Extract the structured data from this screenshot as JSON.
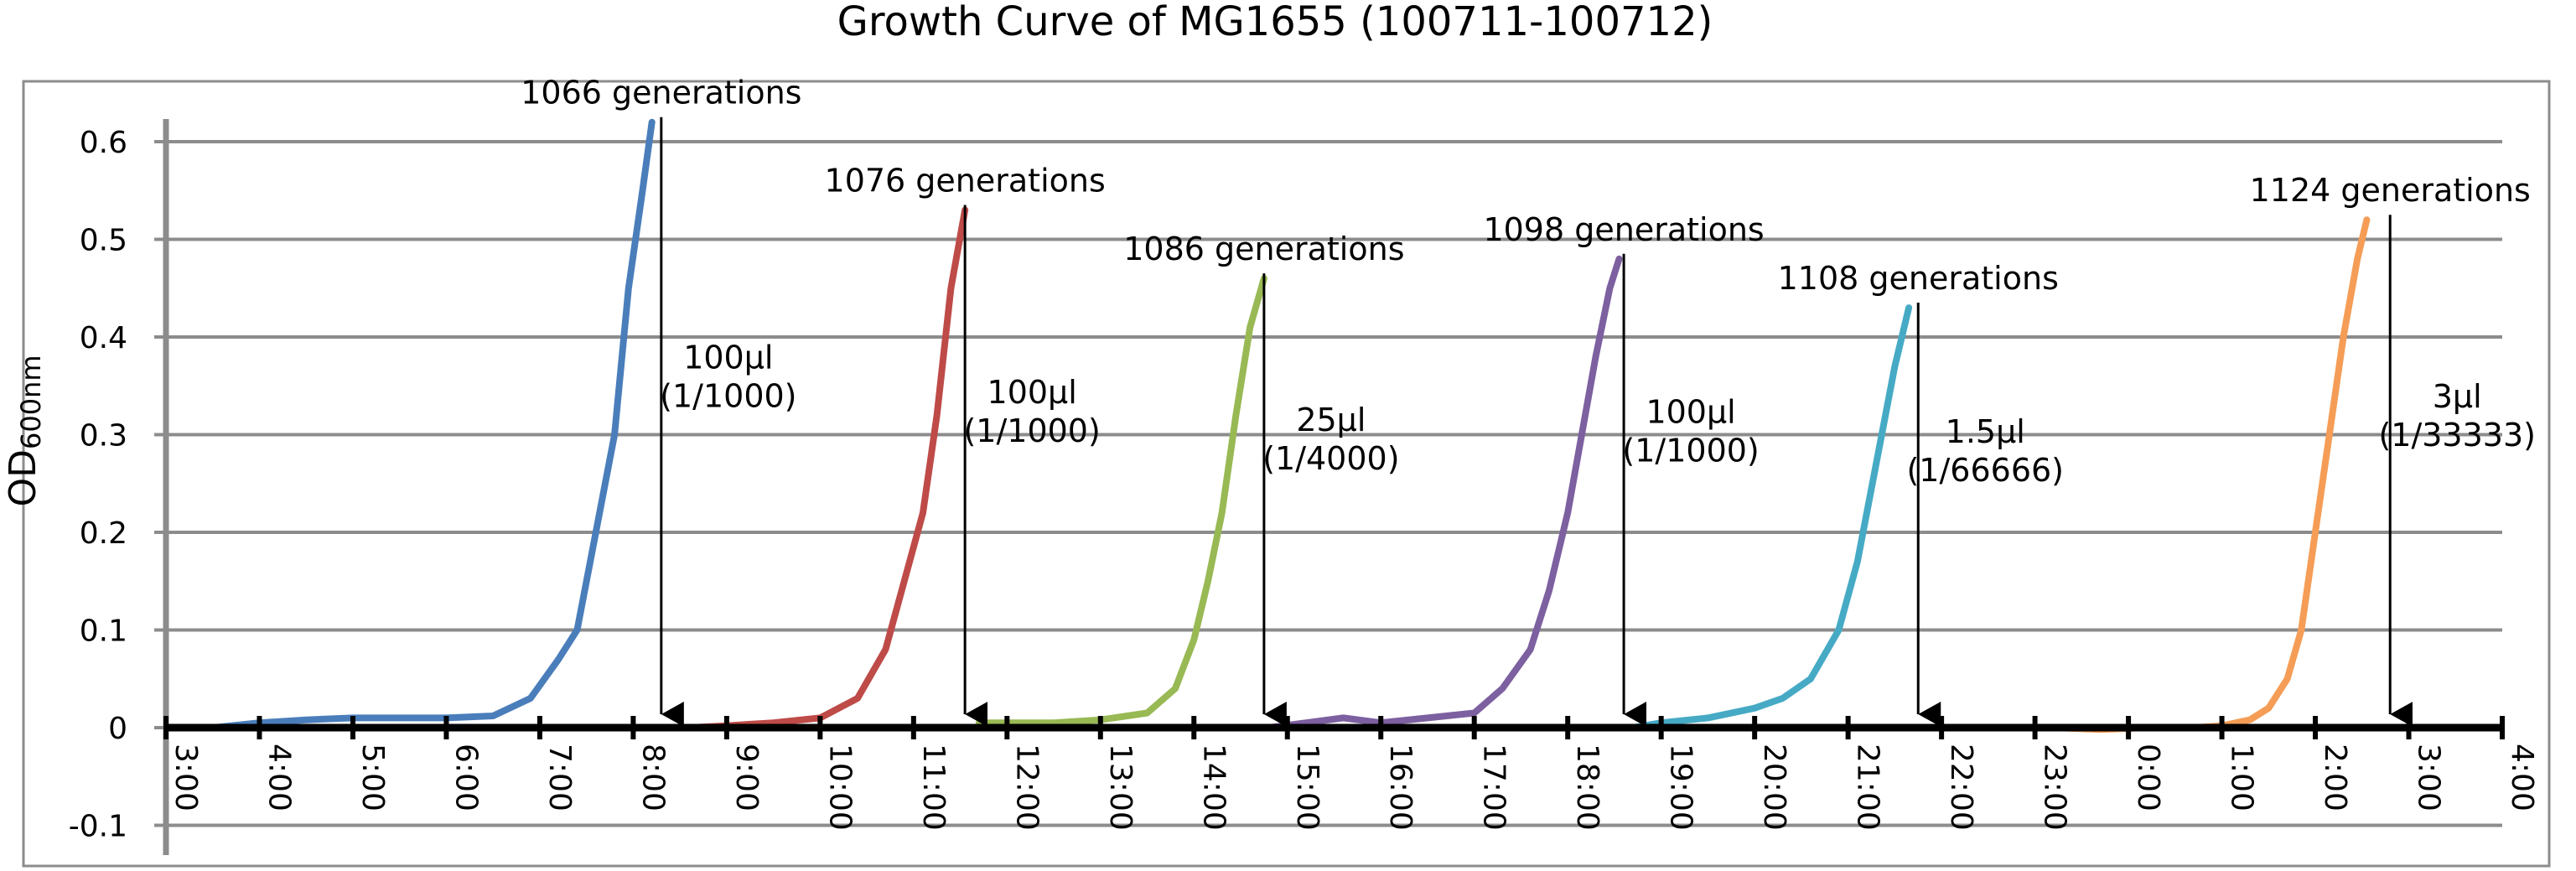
{
  "chart_data": {
    "type": "line",
    "title": "Growth Curve of MG1655 (100711-100712)",
    "ylabel_main": "OD",
    "ylabel_sub": "600nm",
    "xlabel": "",
    "ylim": [
      -0.1,
      0.62
    ],
    "yticks": [
      "-0.1",
      "0",
      "0.1",
      "0.2",
      "0.3",
      "0.4",
      "0.5",
      "0.6"
    ],
    "ytick_values": [
      -0.1,
      0,
      0.1,
      0.2,
      0.3,
      0.4,
      0.5,
      0.6
    ],
    "xlim_hours": [
      3,
      28
    ],
    "xticks": [
      "3:00",
      "4:00",
      "5:00",
      "6:00",
      "7:00",
      "8:00",
      "9:00",
      "10:00",
      "11:00",
      "12:00",
      "13:00",
      "14:00",
      "15:00",
      "16:00",
      "17:00",
      "18:00",
      "19:00",
      "20:00",
      "21:00",
      "22:00",
      "23:00",
      "0:00",
      "1:00",
      "2:00",
      "3:00",
      "4:00"
    ],
    "grid": true,
    "series": [
      {
        "color": "#4a7ebb",
        "x": [
          3.5,
          4.0,
          4.5,
          5.0,
          5.5,
          6.0,
          6.5,
          6.9,
          7.2,
          7.4,
          7.6,
          7.8,
          7.95,
          8.1,
          8.2
        ],
        "y": [
          0.0,
          0.005,
          0.008,
          0.01,
          0.01,
          0.01,
          0.012,
          0.03,
          0.07,
          0.1,
          0.2,
          0.3,
          0.45,
          0.55,
          0.62
        ]
      },
      {
        "color": "#be4b48",
        "x": [
          8.6,
          9.0,
          9.5,
          10.0,
          10.4,
          10.7,
          10.9,
          11.1,
          11.25,
          11.4,
          11.55
        ],
        "y": [
          0.0,
          0.002,
          0.005,
          0.01,
          0.03,
          0.08,
          0.15,
          0.22,
          0.32,
          0.45,
          0.53
        ]
      },
      {
        "color": "#98b954",
        "x": [
          11.7,
          12.0,
          12.5,
          13.0,
          13.5,
          13.8,
          14.0,
          14.15,
          14.3,
          14.45,
          14.6,
          14.75
        ],
        "y": [
          0.005,
          0.005,
          0.005,
          0.008,
          0.015,
          0.04,
          0.09,
          0.15,
          0.22,
          0.32,
          0.41,
          0.46
        ]
      },
      {
        "color": "#7d60a0",
        "x": [
          14.8,
          15.2,
          15.6,
          16.0,
          16.5,
          17.0,
          17.3,
          17.6,
          17.8,
          18.0,
          18.15,
          18.3,
          18.45,
          18.55
        ],
        "y": [
          0.0,
          0.005,
          0.01,
          0.005,
          0.01,
          0.015,
          0.04,
          0.08,
          0.14,
          0.22,
          0.3,
          0.38,
          0.45,
          0.48
        ]
      },
      {
        "color": "#46aac5",
        "x": [
          18.7,
          19.0,
          19.5,
          20.0,
          20.3,
          20.6,
          20.9,
          21.1,
          21.3,
          21.5,
          21.65
        ],
        "y": [
          0.0,
          0.005,
          0.01,
          0.02,
          0.03,
          0.05,
          0.1,
          0.17,
          0.27,
          0.37,
          0.43
        ]
      },
      {
        "color": "#f59d56",
        "x": [
          21.8,
          22.2,
          22.7,
          23.2,
          23.7,
          24.2,
          24.7,
          25.0,
          25.3,
          25.5,
          25.7,
          25.85,
          26.0,
          26.15,
          26.3,
          26.45,
          26.55
        ],
        "y": [
          0.0,
          0.0,
          0.0,
          0.0,
          -0.002,
          0.0,
          0.0,
          0.002,
          0.008,
          0.02,
          0.05,
          0.1,
          0.2,
          0.3,
          0.4,
          0.48,
          0.52
        ]
      }
    ],
    "annotations": [
      {
        "generation_label": "1066 generations",
        "dilution_volume": "100μl",
        "dilution_ratio": "(1/1000)",
        "x": 8.3,
        "top_y": 0.62
      },
      {
        "generation_label": "1076 generations",
        "dilution_volume": "100μl",
        "dilution_ratio": "(1/1000)",
        "x": 11.55,
        "top_y": 0.53
      },
      {
        "generation_label": "1086 generations",
        "dilution_volume": "25μl",
        "dilution_ratio": "(1/4000)",
        "x": 14.75,
        "top_y": 0.46
      },
      {
        "generation_label": "1098 generations",
        "dilution_volume": "100μl",
        "dilution_ratio": "(1/1000)",
        "x": 18.6,
        "top_y": 0.48
      },
      {
        "generation_label": "1108 generations",
        "dilution_volume": "1.5μl",
        "dilution_ratio": "(1/66666)",
        "x": 21.75,
        "top_y": 0.43
      },
      {
        "generation_label": "1124 generations",
        "dilution_volume": "3μl",
        "dilution_ratio": "(1/33333)",
        "x": 26.8,
        "top_y": 0.52
      }
    ]
  }
}
